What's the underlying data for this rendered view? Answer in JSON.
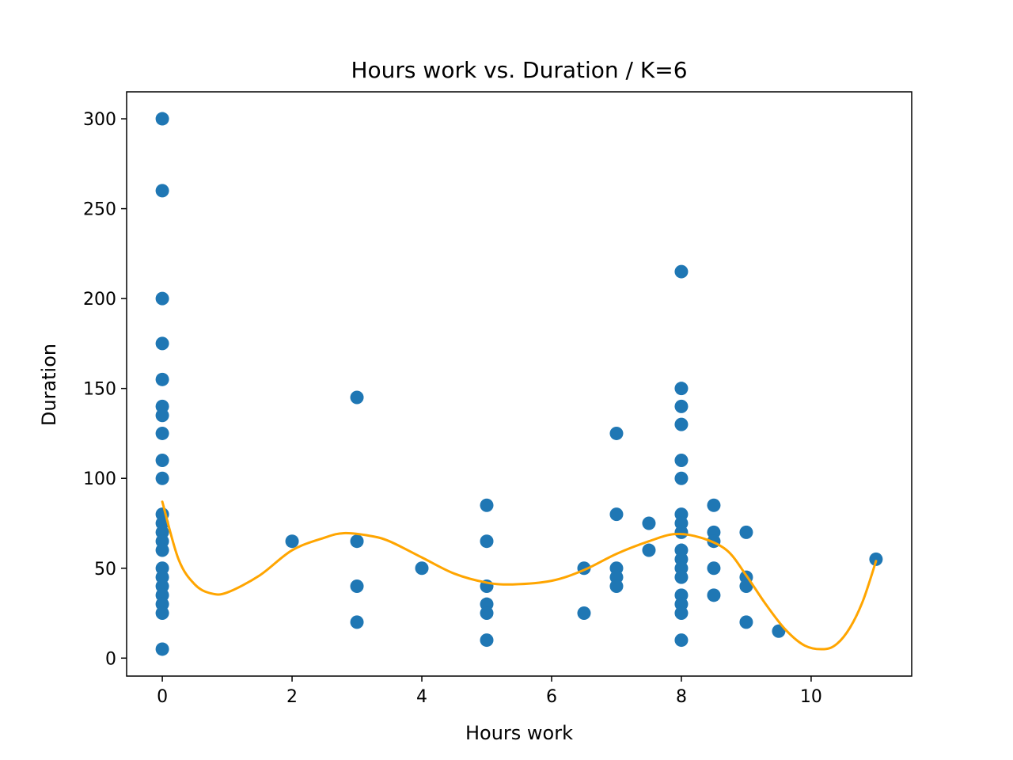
{
  "chart_data": {
    "type": "scatter",
    "title": "Hours work vs. Duration / K=6",
    "xlabel": "Hours work",
    "ylabel": "Duration",
    "xlim": [
      -0.55,
      11.55
    ],
    "ylim": [
      -10,
      315
    ],
    "x_ticks": [
      0,
      2,
      4,
      6,
      8,
      10
    ],
    "y_ticks": [
      0,
      50,
      100,
      150,
      200,
      250,
      300
    ],
    "grid": false,
    "colors": {
      "points": "#1f77b4",
      "fit_line": "#ffa500"
    },
    "points": [
      [
        0,
        300
      ],
      [
        0,
        260
      ],
      [
        0,
        200
      ],
      [
        0,
        175
      ],
      [
        0,
        155
      ],
      [
        0,
        140
      ],
      [
        0,
        135
      ],
      [
        0,
        125
      ],
      [
        0,
        110
      ],
      [
        0,
        100
      ],
      [
        0,
        80
      ],
      [
        0,
        75
      ],
      [
        0,
        70
      ],
      [
        0,
        65
      ],
      [
        0,
        60
      ],
      [
        0,
        50
      ],
      [
        0,
        45
      ],
      [
        0,
        40
      ],
      [
        0,
        35
      ],
      [
        0,
        30
      ],
      [
        0,
        25
      ],
      [
        0,
        5
      ],
      [
        2,
        65
      ],
      [
        3,
        145
      ],
      [
        3,
        65
      ],
      [
        3,
        40
      ],
      [
        3,
        20
      ],
      [
        4,
        50
      ],
      [
        5,
        85
      ],
      [
        5,
        65
      ],
      [
        5,
        40
      ],
      [
        5,
        30
      ],
      [
        5,
        25
      ],
      [
        5,
        10
      ],
      [
        6.5,
        50
      ],
      [
        6.5,
        25
      ],
      [
        7,
        125
      ],
      [
        7,
        80
      ],
      [
        7,
        50
      ],
      [
        7,
        45
      ],
      [
        7,
        40
      ],
      [
        7.5,
        75
      ],
      [
        7.5,
        60
      ],
      [
        8,
        215
      ],
      [
        8,
        150
      ],
      [
        8,
        140
      ],
      [
        8,
        130
      ],
      [
        8,
        110
      ],
      [
        8,
        100
      ],
      [
        8,
        80
      ],
      [
        8,
        75
      ],
      [
        8,
        70
      ],
      [
        8,
        60
      ],
      [
        8,
        55
      ],
      [
        8,
        50
      ],
      [
        8,
        45
      ],
      [
        8,
        35
      ],
      [
        8,
        30
      ],
      [
        8,
        25
      ],
      [
        8,
        10
      ],
      [
        8.5,
        85
      ],
      [
        8.5,
        70
      ],
      [
        8.5,
        65
      ],
      [
        8.5,
        50
      ],
      [
        8.5,
        35
      ],
      [
        9,
        70
      ],
      [
        9,
        45
      ],
      [
        9,
        40
      ],
      [
        9,
        20
      ],
      [
        9.5,
        15
      ],
      [
        11,
        55
      ]
    ],
    "fit_line": {
      "x": [
        0,
        0.25,
        0.5,
        0.75,
        1,
        1.5,
        2,
        2.5,
        2.8,
        3.2,
        3.5,
        4,
        4.5,
        5,
        5.4,
        6,
        6.5,
        7,
        7.5,
        7.9,
        8.3,
        8.7,
        9,
        9.3,
        9.6,
        9.9,
        10.2,
        10.4,
        10.6,
        10.8,
        11
      ],
      "y": [
        87,
        55,
        41,
        36,
        36.5,
        46,
        60,
        67,
        69.5,
        68,
        65,
        56,
        47,
        42,
        41,
        43,
        49,
        58,
        65,
        69,
        67,
        60,
        46,
        30,
        16,
        7,
        5,
        8,
        17,
        32,
        54
      ]
    }
  }
}
